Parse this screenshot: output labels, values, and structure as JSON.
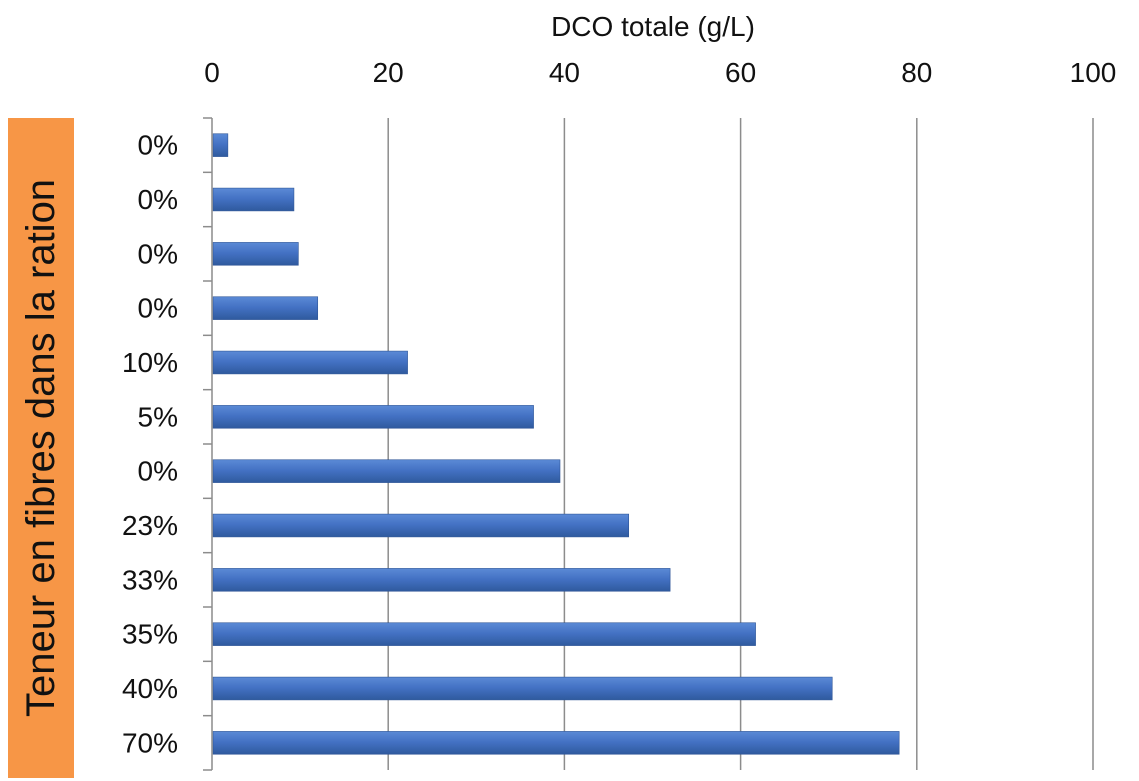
{
  "chart_data": {
    "type": "bar",
    "orientation": "horizontal",
    "title": "",
    "xlabel": "DCO totale (g/L)",
    "ylabel": "Teneur en fibres dans la ration",
    "xlim": [
      0,
      100
    ],
    "x_ticks": [
      "0",
      "20",
      "40",
      "60",
      "80",
      "100"
    ],
    "x_axis_position": "top",
    "grid": "vertical",
    "legend": "none",
    "categories": [
      "0%",
      "0%",
      "0%",
      "0%",
      "10%",
      "5%",
      "0%",
      "23%",
      "33%",
      "35%",
      "40%",
      "70%"
    ],
    "series": [
      {
        "values": [
          1.8,
          9.3,
          9.8,
          12.0,
          22.2,
          36.5,
          39.5,
          47.3,
          52.0,
          61.7,
          70.4,
          78.0
        ]
      }
    ],
    "colors": {
      "bar": "#4472C4",
      "bar_dark": "#2E5597",
      "grid": "#8C8C8C",
      "ylabel_background": "#F79646"
    }
  }
}
